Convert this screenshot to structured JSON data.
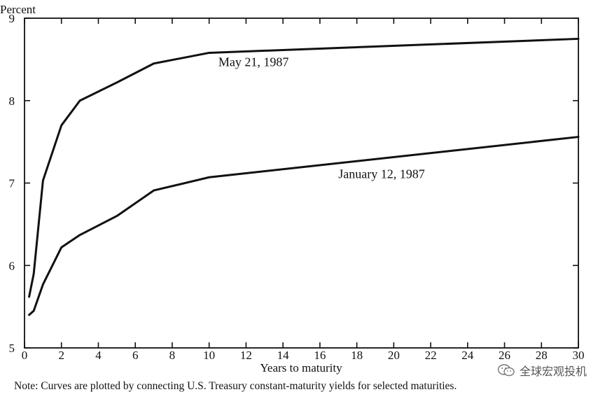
{
  "chart_data": {
    "type": "line",
    "ylabel": "Percent",
    "xlabel": "Years to maturity",
    "xlim": [
      0,
      30
    ],
    "ylim": [
      5,
      9
    ],
    "x_ticks": [
      "0",
      "2",
      "4",
      "6",
      "8",
      "10",
      "12",
      "14",
      "16",
      "18",
      "20",
      "22",
      "24",
      "26",
      "28",
      "30"
    ],
    "y_ticks": [
      "5",
      "6",
      "7",
      "8",
      "9"
    ],
    "grid": false,
    "series": [
      {
        "name": "May 21, 1987",
        "points": [
          [
            0.25,
            5.62
          ],
          [
            0.5,
            5.9
          ],
          [
            1,
            7.03
          ],
          [
            2,
            7.7
          ],
          [
            3,
            8.0
          ],
          [
            5,
            8.22
          ],
          [
            7,
            8.45
          ],
          [
            10,
            8.58
          ],
          [
            30,
            8.75
          ]
        ]
      },
      {
        "name": "January 12, 1987",
        "points": [
          [
            0.25,
            5.4
          ],
          [
            0.5,
            5.45
          ],
          [
            1,
            5.77
          ],
          [
            2,
            6.22
          ],
          [
            3,
            6.37
          ],
          [
            5,
            6.6
          ],
          [
            7,
            6.91
          ],
          [
            10,
            7.07
          ],
          [
            30,
            7.56
          ]
        ]
      }
    ]
  },
  "note": "Note: Curves are plotted by connecting U.S. Treasury constant-maturity yields for selected maturities.",
  "watermark": {
    "icon": "wechat-icon",
    "text": "全球宏观投机"
  }
}
